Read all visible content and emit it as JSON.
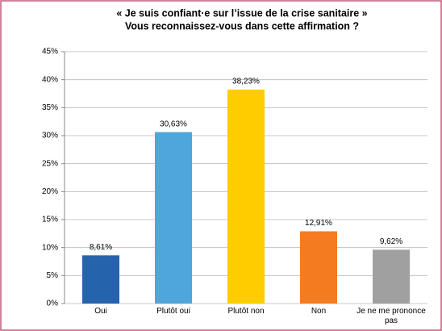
{
  "chart_data": {
    "type": "bar",
    "title": [
      "« Je suis confiant·e sur l’issue de la crise sanitaire »",
      "Vous reconnaissez-vous dans cette affirmation ?"
    ],
    "categories": [
      "Oui",
      "Plutôt oui",
      "Plutôt non",
      "Non",
      "Je ne me prononce pas"
    ],
    "values": [
      8.61,
      30.63,
      38.23,
      12.91,
      9.62
    ],
    "value_labels": [
      "8,61%",
      "30,63%",
      "38,23%",
      "12,91%",
      "9,62%"
    ],
    "colors": [
      "#2563ad",
      "#4fa6dc",
      "#ffcc00",
      "#f47b20",
      "#a0a0a0"
    ],
    "ylim": [
      0,
      45
    ],
    "yticks": [
      {
        "value": 0,
        "label": "0%"
      },
      {
        "value": 5,
        "label": "5%"
      },
      {
        "value": 10,
        "label": "10%"
      },
      {
        "value": 15,
        "label": "15%"
      },
      {
        "value": 20,
        "label": "20%"
      },
      {
        "value": 25,
        "label": "25%"
      },
      {
        "value": 30,
        "label": "30%"
      },
      {
        "value": 35,
        "label": "35%"
      },
      {
        "value": 40,
        "label": "40%"
      },
      {
        "value": 45,
        "label": "45%"
      }
    ],
    "grid": true
  }
}
